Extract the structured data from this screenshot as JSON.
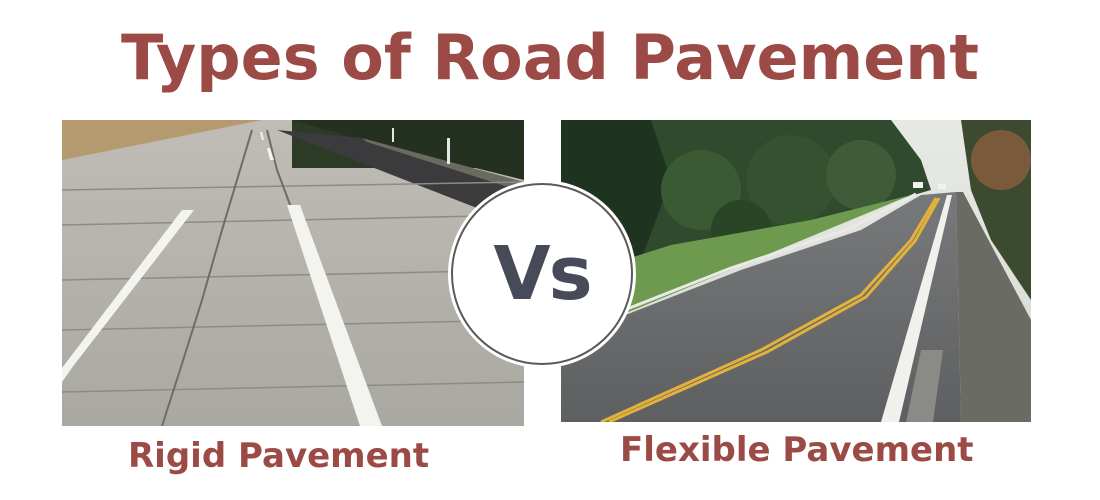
{
  "title": "Types of Road Pavement",
  "left": {
    "caption": "Rigid Pavement",
    "image_subject": "concrete-road-photo"
  },
  "right": {
    "caption": "Flexible Pavement",
    "image_subject": "asphalt-road-photo"
  },
  "badge": {
    "text": "Vs"
  },
  "colors": {
    "title": "#9c4a46",
    "caption": "#9c4a46",
    "badge_text": "#474a58",
    "badge_ring": "#5a5a5a"
  }
}
